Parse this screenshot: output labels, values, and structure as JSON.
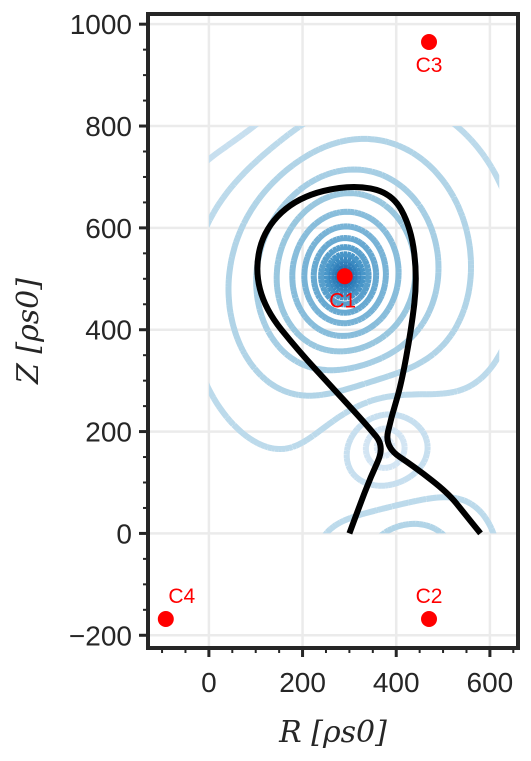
{
  "chart_data": {
    "type": "contour",
    "xlabel": "R [ρs0]",
    "ylabel": "Z [ρs0]",
    "xlim": [
      -130,
      660
    ],
    "ylim": [
      -225,
      1020
    ],
    "x_ticks": [
      0,
      200,
      400,
      600
    ],
    "x_tick_labels": [
      "0",
      "200",
      "400",
      "600"
    ],
    "y_ticks": [
      -200,
      0,
      200,
      400,
      600,
      800,
      1000
    ],
    "y_tick_labels": [
      "−200",
      "0",
      "200",
      "400",
      "600",
      "800",
      "1000"
    ],
    "grid": true,
    "contour_domain": {
      "r": [
        0,
        620
      ],
      "z": [
        0,
        800
      ]
    },
    "contour_style": "dashed",
    "colormap": [
      "#deebf7",
      "#9ecae1",
      "#4292c6",
      "#08519c"
    ],
    "separatrix": {
      "color": "#000000",
      "x_point": [
        375,
        170
      ],
      "points": [
        [
          300,
          0
        ],
        [
          320,
          50
        ],
        [
          345,
          110
        ],
        [
          375,
          170
        ],
        [
          340,
          210
        ],
        [
          270,
          280
        ],
        [
          190,
          360
        ],
        [
          120,
          440
        ],
        [
          98,
          520
        ],
        [
          120,
          600
        ],
        [
          190,
          660
        ],
        [
          300,
          685
        ],
        [
          390,
          670
        ],
        [
          432,
          600
        ],
        [
          445,
          500
        ],
        [
          432,
          400
        ],
        [
          410,
          290
        ],
        [
          390,
          230
        ],
        [
          375,
          170
        ],
        [
          440,
          130
        ],
        [
          510,
          80
        ],
        [
          545,
          40
        ],
        [
          580,
          0
        ]
      ]
    },
    "coils": [
      {
        "label": "C1",
        "r": 290,
        "z": 505
      },
      {
        "label": "C2",
        "r": 470,
        "z": -168
      },
      {
        "label": "C3",
        "r": 470,
        "z": 965
      },
      {
        "label": "C4",
        "r": -92,
        "z": -168
      }
    ],
    "coil_color": "#ff0000",
    "label_color": "#ff0000"
  }
}
